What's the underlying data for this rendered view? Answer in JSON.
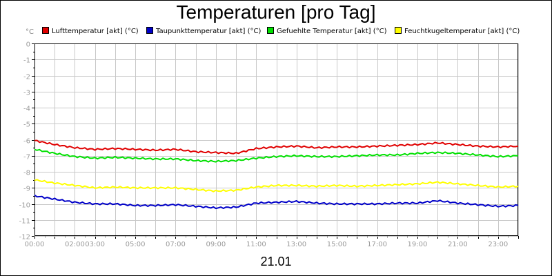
{
  "chart_data": {
    "type": "line",
    "title": "Temperaturen [pro Tag]",
    "ylabel": "°C",
    "xlabel": "21.01",
    "ylim": [
      -12,
      0
    ],
    "xlim_hours": [
      0,
      24
    ],
    "grid": true,
    "legend_position": "top",
    "yticks": [
      0,
      -1,
      -2,
      -3,
      -4,
      -5,
      -6,
      -7,
      -8,
      -9,
      -10,
      -11,
      -12
    ],
    "ytick_labels": [
      "0",
      "-1",
      "-2",
      "-3",
      "-4",
      "-5",
      "-6",
      "-7",
      "-8",
      "-9",
      "-10",
      "-11",
      "-12"
    ],
    "xticks": [
      {
        "hour": 0,
        "label": "00:00"
      },
      {
        "hour": 2,
        "label": "02:00"
      },
      {
        "hour": 3,
        "label": "03:00"
      },
      {
        "hour": 5,
        "label": "05:00"
      },
      {
        "hour": 7,
        "label": "07:00"
      },
      {
        "hour": 9,
        "label": "09:00"
      },
      {
        "hour": 11,
        "label": "11:00"
      },
      {
        "hour": 13,
        "label": "13:00"
      },
      {
        "hour": 15,
        "label": "15:00"
      },
      {
        "hour": 17,
        "label": "17:00"
      },
      {
        "hour": 19,
        "label": "19:00"
      },
      {
        "hour": 21,
        "label": "21:00"
      },
      {
        "hour": 23,
        "label": "23:00"
      }
    ],
    "x_hours": [
      0,
      1,
      2,
      3,
      4,
      5,
      6,
      7,
      8,
      9,
      10,
      11,
      12,
      13,
      14,
      15,
      16,
      17,
      18,
      19,
      20,
      21,
      22,
      23,
      24
    ],
    "series": [
      {
        "name": "Lufttemperatur [akt] (°C)",
        "color": "#e00000",
        "values": [
          -6.05,
          -6.3,
          -6.5,
          -6.6,
          -6.55,
          -6.6,
          -6.65,
          -6.6,
          -6.75,
          -6.8,
          -6.85,
          -6.55,
          -6.45,
          -6.4,
          -6.5,
          -6.45,
          -6.45,
          -6.4,
          -6.35,
          -6.3,
          -6.2,
          -6.3,
          -6.4,
          -6.45,
          -6.4
        ]
      },
      {
        "name": "Taupunkttemperatur [akt] (°C)",
        "color": "#0000c8",
        "values": [
          -9.5,
          -9.7,
          -9.9,
          -10.0,
          -10.0,
          -10.1,
          -10.1,
          -10.05,
          -10.15,
          -10.25,
          -10.2,
          -9.95,
          -9.9,
          -9.85,
          -9.95,
          -10.0,
          -10.0,
          -10.0,
          -9.95,
          -9.95,
          -9.8,
          -9.95,
          -10.05,
          -10.15,
          -10.1
        ]
      },
      {
        "name": "Gefuehlte Temperatur [akt] (°C)",
        "color": "#00e000",
        "values": [
          -6.6,
          -6.85,
          -7.05,
          -7.15,
          -7.1,
          -7.15,
          -7.2,
          -7.2,
          -7.3,
          -7.35,
          -7.3,
          -7.15,
          -7.05,
          -7.0,
          -7.05,
          -7.05,
          -7.0,
          -6.95,
          -6.95,
          -6.85,
          -6.8,
          -6.85,
          -6.95,
          -7.05,
          -7.0
        ]
      },
      {
        "name": "Feuchtkugeltemperatur [akt] (°C)",
        "color": "#ffff00",
        "values": [
          -8.5,
          -8.7,
          -8.85,
          -9.0,
          -8.95,
          -9.0,
          -9.0,
          -9.0,
          -9.1,
          -9.2,
          -9.15,
          -8.95,
          -8.85,
          -8.85,
          -8.9,
          -8.85,
          -8.9,
          -8.85,
          -8.8,
          -8.75,
          -8.65,
          -8.75,
          -8.85,
          -8.95,
          -8.9
        ]
      }
    ]
  }
}
